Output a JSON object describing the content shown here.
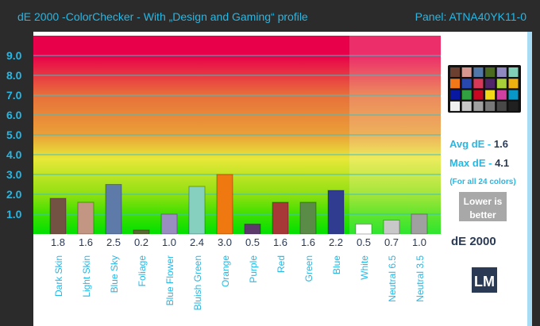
{
  "title": "dE 2000 -ColorChecker - With „Design and Gaming“ profile",
  "panel": "Panel: ATNA40YK11-0",
  "chart_data": {
    "type": "bar",
    "categories": [
      "Dark Skin",
      "Light Skin",
      "Blue Sky",
      "Foliage",
      "Blue Flower",
      "Bluish Green",
      "Orange",
      "Purple",
      "Red",
      "Green",
      "Blue",
      "White",
      "Neutral 6.5",
      "Neutral 3.5"
    ],
    "values": [
      1.8,
      1.6,
      2.5,
      0.2,
      1.0,
      2.4,
      3.0,
      0.5,
      1.6,
      1.6,
      2.2,
      0.5,
      0.7,
      1.0
    ],
    "bar_colors": [
      "#735244",
      "#c29682",
      "#5d7aa8",
      "#566c2c",
      "#9a8ec0",
      "#86d0c0",
      "#f07810",
      "#5c3a6c",
      "#a83838",
      "#5a8c48",
      "#303c90",
      "#ffffff",
      "#c8c8c8",
      "#a0a0a0"
    ],
    "yticks": [
      "1.0",
      "2.0",
      "3.0",
      "4.0",
      "5.0",
      "6.0",
      "7.0",
      "8.0",
      "9.0"
    ],
    "ylim": [
      0,
      10
    ],
    "grid": true,
    "xlabel": "dE 2000"
  },
  "side": {
    "avg_label": "Avg dE - ",
    "avg_value": "1.6",
    "max_label": "Max dE - ",
    "max_value": "4.1",
    "note": "(For all 24 colors)",
    "lower_1": "Lower is",
    "lower_2": "better",
    "logo": "LM"
  },
  "checker_colors": [
    "#6b4030",
    "#d89890",
    "#5078a8",
    "#4a6a20",
    "#9088c0",
    "#80d0b8",
    "#f07818",
    "#2848b0",
    "#d83858",
    "#502468",
    "#a8d038",
    "#f0b010",
    "#0818a0",
    "#30a040",
    "#c80820",
    "#f0d818",
    "#d040a0",
    "#0898c8",
    "#f0f0f0",
    "#c8c8c8",
    "#a0a0a0",
    "#787878",
    "#484848",
    "#202020"
  ]
}
